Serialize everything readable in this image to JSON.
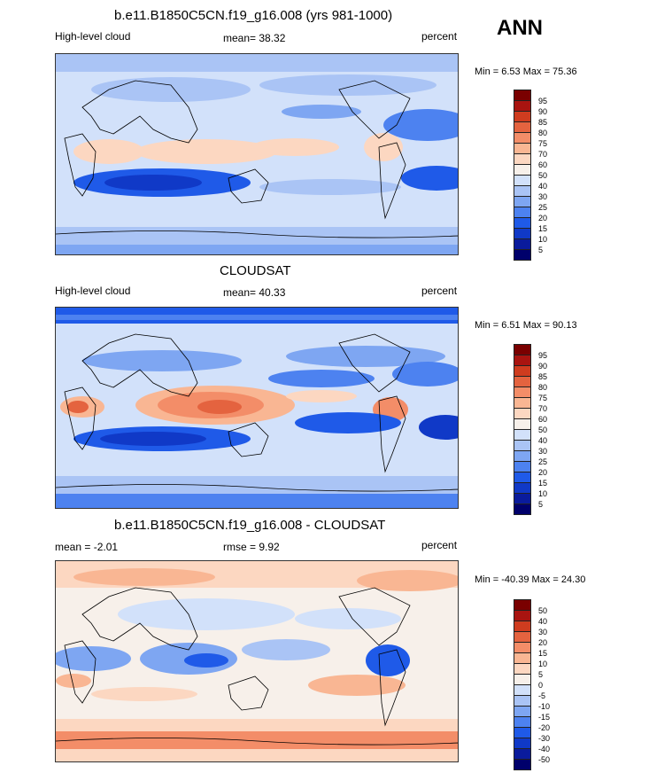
{
  "season": "ANN",
  "palette_colors": [
    "#00006b",
    "#0a1b9c",
    "#1039c7",
    "#1f5ae8",
    "#4d82f0",
    "#7ea6f2",
    "#aac4f5",
    "#d2e1fa",
    "#f7f0ea",
    "#fcd7c1",
    "#f9b693",
    "#f38d68",
    "#e4633f",
    "#cf3c1f",
    "#a91410",
    "#7a0000"
  ],
  "panels": [
    {
      "title": "b.e11.B1850C5CN.f19_g16.008 (yrs 981-1000)",
      "left_label": "High-level cloud",
      "center_label": "mean=  38.32",
      "right_label": "percent",
      "minmax": "Min =   6.53 Max =  75.36",
      "levels": [
        "95",
        "90",
        "85",
        "80",
        "75",
        "70",
        "60",
        "50",
        "40",
        "30",
        "25",
        "20",
        "15",
        "10",
        "5"
      ]
    },
    {
      "title": "CLOUDSAT",
      "left_label": "High-level cloud",
      "center_label": "mean=  40.33",
      "right_label": "percent",
      "minmax": "Min =   6.51 Max =  90.13",
      "levels": [
        "95",
        "90",
        "85",
        "80",
        "75",
        "70",
        "60",
        "50",
        "40",
        "30",
        "25",
        "20",
        "15",
        "10",
        "5"
      ]
    },
    {
      "title": "b.e11.B1850C5CN.f19_g16.008 - CLOUDSAT",
      "left_label": "mean =  -2.01",
      "center_label": "rmse =    9.92",
      "right_label": "percent",
      "minmax": "Min = -40.39 Max =  24.30",
      "levels": [
        "50",
        "40",
        "30",
        "20",
        "15",
        "10",
        "5",
        "0",
        "-5",
        "-10",
        "-15",
        "-20",
        "-30",
        "-40",
        "-50"
      ]
    }
  ],
  "chart_data": [
    {
      "type": "heatmap",
      "title": "b.e11.B1850C5CN.f19_g16.008 (yrs 981-1000)",
      "variable": "High-level cloud",
      "units": "percent",
      "mean": 38.32,
      "min": 6.53,
      "max": 75.36,
      "contour_levels": [
        5,
        10,
        15,
        20,
        25,
        30,
        40,
        50,
        60,
        70,
        75,
        80,
        85,
        90,
        95
      ]
    },
    {
      "type": "heatmap",
      "title": "CLOUDSAT",
      "variable": "High-level cloud",
      "units": "percent",
      "mean": 40.33,
      "min": 6.51,
      "max": 90.13,
      "contour_levels": [
        5,
        10,
        15,
        20,
        25,
        30,
        40,
        50,
        60,
        70,
        75,
        80,
        85,
        90,
        95
      ]
    },
    {
      "type": "heatmap",
      "title": "b.e11.B1850C5CN.f19_g16.008 - CLOUDSAT",
      "units": "percent",
      "mean": -2.01,
      "rmse": 9.92,
      "min": -40.39,
      "max": 24.3,
      "contour_levels": [
        -50,
        -40,
        -30,
        -20,
        -15,
        -10,
        -5,
        0,
        5,
        10,
        15,
        20,
        30,
        40,
        50
      ]
    }
  ]
}
